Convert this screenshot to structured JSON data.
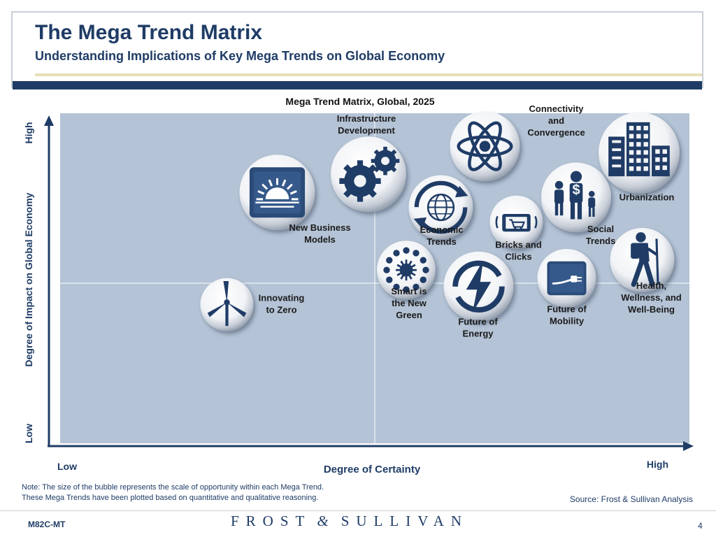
{
  "header": {
    "title": "The Mega Trend Matrix",
    "subtitle": "Understanding Implications of Key Mega Trends on Global Economy"
  },
  "colors": {
    "navy": "#1f3c66",
    "plot_bg": "#b4c3d5",
    "gold_bar": "#e7dfb8",
    "label": "#1a1a1a"
  },
  "chart_data": {
    "type": "scatter",
    "title": "Mega Trend Matrix, Global, 2025",
    "xlabel": "Degree of Certainty",
    "ylabel": "Degree of Impact on Global Economy",
    "x_low_label": "Low",
    "x_high_label": "High",
    "y_low_label": "Low",
    "y_high_label": "High",
    "xlim": [
      0,
      100
    ],
    "ylim": [
      0,
      100
    ],
    "quadrant_divider": {
      "x": 50,
      "y": 50
    },
    "points": [
      {
        "name": "Innovating to Zero",
        "label_lines": [
          "Innovating",
          "to Zero"
        ],
        "icon": "wind-turbine-icon",
        "x": 26.5,
        "y": 42,
        "size": 2.5
      },
      {
        "name": "New Business Models",
        "label_lines": [
          "New Business",
          "Models"
        ],
        "icon": "sunrise-icon",
        "x": 34.5,
        "y": 76,
        "size": 4.5
      },
      {
        "name": "Infrastructure Development",
        "label_lines": [
          "Infrastructure",
          "Development"
        ],
        "icon": "gears-icon",
        "x": 49,
        "y": 81.5,
        "size": 4.5
      },
      {
        "name": "Smart is the New Green",
        "label_lines": [
          "Smart is",
          "the New",
          "Green"
        ],
        "icon": "network-icon",
        "x": 55,
        "y": 52.5,
        "size": 3
      },
      {
        "name": "Economic Trends",
        "label_lines": [
          "Economic",
          "Trends"
        ],
        "icon": "globe-cycle-icon",
        "x": 60.5,
        "y": 71.5,
        "size": 3.5
      },
      {
        "name": "Future of Energy",
        "label_lines": [
          "Future of",
          "Energy"
        ],
        "icon": "lightning-icon",
        "x": 66.5,
        "y": 47.5,
        "size": 4
      },
      {
        "name": "Connectivity and Convergence",
        "label_lines": [
          "Connectivity",
          "and",
          "Convergence"
        ],
        "icon": "atom-icon",
        "x": 67.5,
        "y": 90,
        "size": 4
      },
      {
        "name": "Bricks and Clicks",
        "label_lines": [
          "Bricks and",
          "Clicks"
        ],
        "icon": "shopping-icon",
        "x": 72.5,
        "y": 67,
        "size": 2.5
      },
      {
        "name": "Future of Mobility",
        "label_lines": [
          "Future of",
          "Mobility"
        ],
        "icon": "ev-plug-icon",
        "x": 80.5,
        "y": 50,
        "size": 3
      },
      {
        "name": "Social Trends",
        "label_lines": [
          "Social",
          "Trends"
        ],
        "icon": "family-icon",
        "x": 82,
        "y": 74.5,
        "size": 4
      },
      {
        "name": "Urbanization",
        "label_lines": [
          "Urbanization"
        ],
        "icon": "buildings-icon",
        "x": 92,
        "y": 88,
        "size": 5
      },
      {
        "name": "Health, Wellness, and Well-Being",
        "label_lines": [
          "Health,",
          "Wellness, and",
          "Well-Being"
        ],
        "icon": "hiker-icon",
        "x": 92.5,
        "y": 55.5,
        "size": 3.5
      }
    ]
  },
  "notes": {
    "line1": "Note: The size of the bubble represents the scale of opportunity within each Mega Trend.",
    "line2": "These Mega Trends have been plotted based on quantitative and qualitative reasoning.",
    "source": "Source: Frost & Sullivan Analysis"
  },
  "footer": {
    "code": "M82C-MT",
    "logo_left": "FROST",
    "logo_amp": "&",
    "logo_right": "SULLIVAN",
    "page_number": "4"
  }
}
